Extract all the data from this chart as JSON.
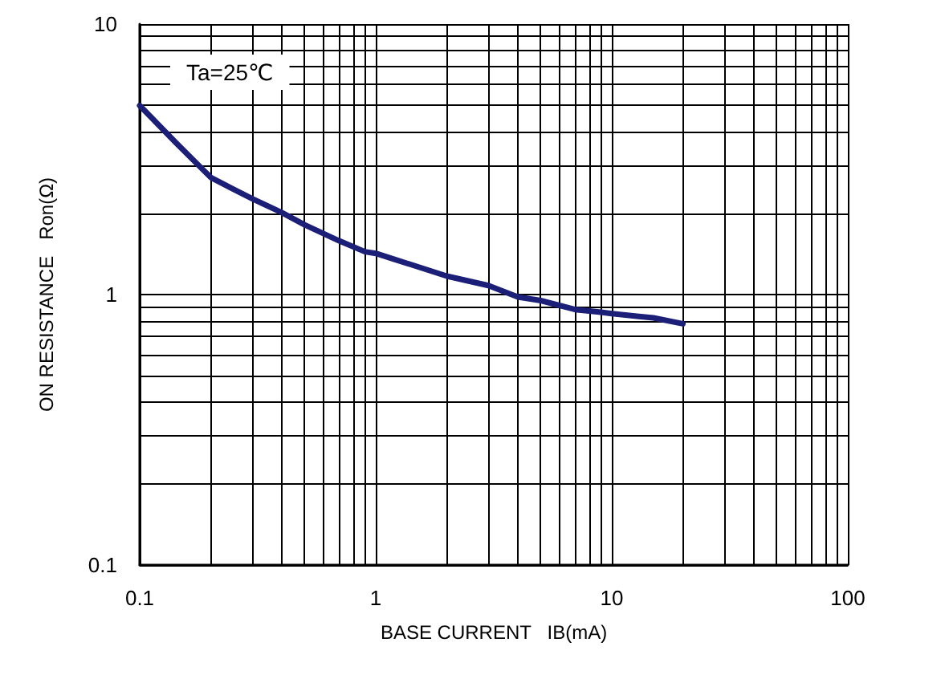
{
  "chart_data": {
    "type": "line",
    "xlabel": "BASE CURRENT   IB(mA)",
    "ylabel": "ON RESISTANCE   Ron(Ω)",
    "annotations": [
      "Ta=25℃"
    ],
    "log": "xy",
    "grid": true,
    "marker": "none",
    "line_style": "solid",
    "xlim": [
      0.1,
      100
    ],
    "ylim": [
      0.1,
      10
    ],
    "xticks": [
      0.1,
      {
        "value": 0.2,
        "label": null
      },
      {
        "value": 0.3,
        "label": null
      },
      {
        "value": 0.4,
        "label": null
      },
      {
        "value": 0.5,
        "label": null
      },
      {
        "value": 0.6,
        "label": null
      },
      {
        "value": 0.7,
        "label": null
      },
      {
        "value": 0.8,
        "label": null
      },
      {
        "value": 0.9,
        "label": null
      },
      1,
      {
        "value": 2,
        "label": null
      },
      {
        "value": 3,
        "label": null
      },
      {
        "value": 4,
        "label": null
      },
      {
        "value": 5,
        "label": null
      },
      {
        "value": 6,
        "label": null
      },
      {
        "value": 7,
        "label": null
      },
      {
        "value": 8,
        "label": null
      },
      {
        "value": 9,
        "label": null
      },
      10,
      {
        "value": 20,
        "label": null
      },
      {
        "value": 30,
        "label": null
      },
      {
        "value": 40,
        "label": null
      },
      {
        "value": 50,
        "label": null
      },
      {
        "value": 60,
        "label": null
      },
      {
        "value": 70,
        "label": null
      },
      {
        "value": 80,
        "label": null
      },
      {
        "value": 90,
        "label": null
      },
      100
    ],
    "yticks": [
      0.1,
      {
        "value": 0.2,
        "label": null
      },
      {
        "value": 0.3,
        "label": null
      },
      {
        "value": 0.4,
        "label": null
      },
      {
        "value": 0.5,
        "label": null
      },
      {
        "value": 0.6,
        "label": null
      },
      {
        "value": 0.7,
        "label": null
      },
      {
        "value": 0.8,
        "label": null
      },
      {
        "value": 0.9,
        "label": null
      },
      1,
      {
        "value": 2,
        "label": null
      },
      {
        "value": 3,
        "label": null
      },
      {
        "value": 4,
        "label": null
      },
      {
        "value": 5,
        "label": null
      },
      {
        "value": 6,
        "label": null
      },
      {
        "value": 7,
        "label": null
      },
      {
        "value": 8,
        "label": null
      },
      {
        "value": 9,
        "label": null
      },
      10
    ],
    "series": [
      {
        "color": "#1c1f78",
        "x": [
          0.1,
          0.142,
          0.2,
          0.25,
          0.3,
          0.4,
          0.5,
          0.7,
          0.9,
          1,
          1.2,
          2,
          3,
          4,
          5,
          7,
          9,
          10,
          13,
          15,
          20
        ],
        "values": [
          5.0,
          3.65,
          2.71,
          2.45,
          2.26,
          2.01,
          1.81,
          1.58,
          1.44,
          1.42,
          1.35,
          1.17,
          1.08,
          0.98,
          0.95,
          0.88,
          0.86,
          0.85,
          0.83,
          0.82,
          0.78
        ]
      }
    ]
  }
}
